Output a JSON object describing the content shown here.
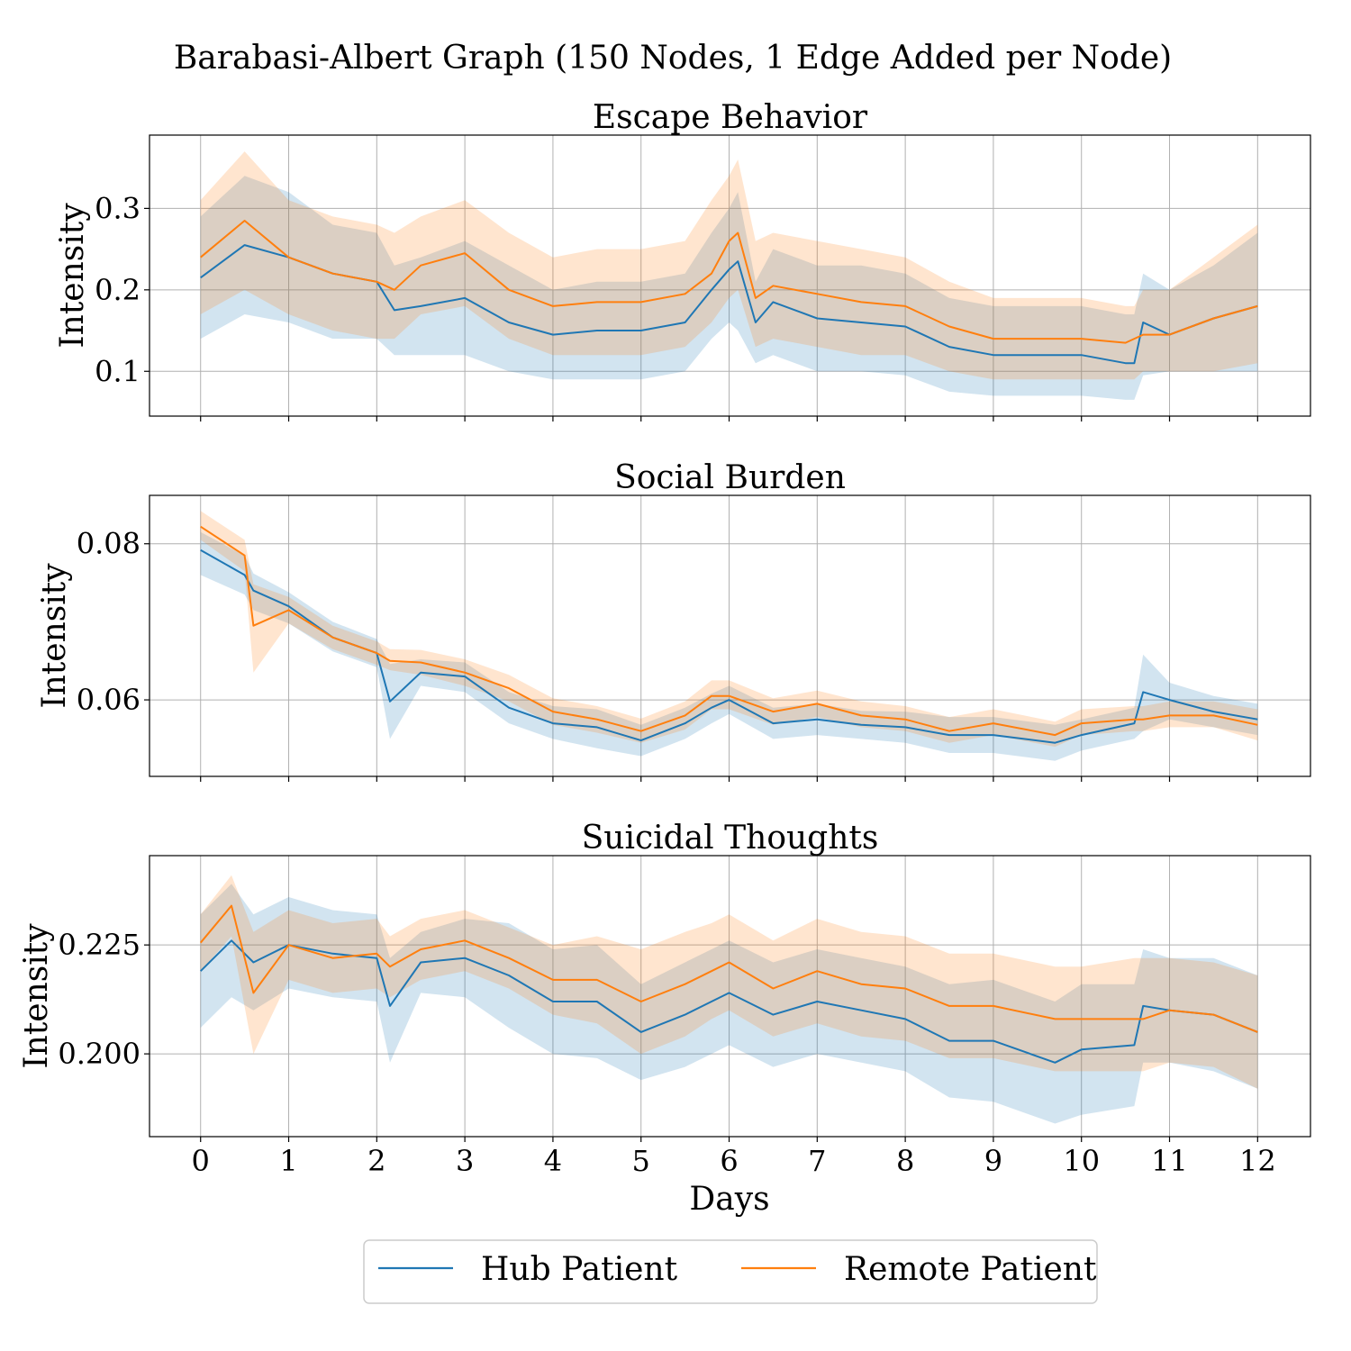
{
  "figure": {
    "title": "Barabasi-Albert Graph (150 Nodes, 1 Edge Added per Node)",
    "xlabel": "Days"
  },
  "legend": {
    "placement": "bottom-center",
    "items": [
      {
        "label": "Hub Patient",
        "color": "#1f77b4"
      },
      {
        "label": "Remote Patient",
        "color": "#ff7f0e"
      }
    ]
  },
  "colors": {
    "hub": "#1f77b4",
    "remote": "#ff7f0e",
    "hub_band": "#1f77b4",
    "remote_band": "#ff7f0e",
    "grid": "#b0b0b0"
  },
  "chart_data": [
    {
      "type": "line",
      "title": "Escape Behavior",
      "xlabel": "",
      "ylabel": "Intensity",
      "xlim": [
        -0.58,
        12.6
      ],
      "ylim": [
        0.045,
        0.39
      ],
      "xticks": [
        0,
        1,
        2,
        3,
        4,
        5,
        6,
        7,
        8,
        9,
        10,
        11,
        12
      ],
      "yticks": [
        0.1,
        0.2,
        0.3
      ],
      "yticklabels": [
        "0.1",
        "0.2",
        "0.3"
      ],
      "grid": true,
      "x": [
        0,
        0.5,
        1,
        1.5,
        2,
        2.2,
        2.5,
        3,
        3.5,
        4,
        4.5,
        5,
        5.5,
        5.8,
        6,
        6.1,
        6.3,
        6.5,
        7,
        7.5,
        8,
        8.5,
        9,
        9.5,
        10,
        10.5,
        10.6,
        10.7,
        11,
        11.5,
        12
      ],
      "series": [
        {
          "name": "Hub Patient",
          "values": [
            0.215,
            0.255,
            0.24,
            0.22,
            0.21,
            0.175,
            0.18,
            0.19,
            0.16,
            0.145,
            0.15,
            0.15,
            0.16,
            0.2,
            0.225,
            0.235,
            0.16,
            0.185,
            0.165,
            0.16,
            0.155,
            0.13,
            0.12,
            0.12,
            0.12,
            0.11,
            0.11,
            0.16,
            0.145,
            0.165,
            0.18
          ],
          "lower": [
            0.14,
            0.17,
            0.16,
            0.14,
            0.14,
            0.12,
            0.12,
            0.12,
            0.1,
            0.09,
            0.09,
            0.09,
            0.1,
            0.14,
            0.16,
            0.15,
            0.11,
            0.12,
            0.1,
            0.1,
            0.095,
            0.075,
            0.07,
            0.07,
            0.07,
            0.065,
            0.065,
            0.095,
            0.1,
            0.1,
            0.1
          ],
          "upper": [
            0.29,
            0.34,
            0.32,
            0.28,
            0.27,
            0.23,
            0.24,
            0.26,
            0.23,
            0.2,
            0.21,
            0.21,
            0.22,
            0.27,
            0.3,
            0.32,
            0.21,
            0.25,
            0.23,
            0.23,
            0.22,
            0.19,
            0.18,
            0.18,
            0.18,
            0.17,
            0.17,
            0.22,
            0.2,
            0.23,
            0.27
          ]
        },
        {
          "name": "Remote Patient",
          "values": [
            0.24,
            0.285,
            0.24,
            0.22,
            0.21,
            0.2,
            0.23,
            0.245,
            0.2,
            0.18,
            0.185,
            0.185,
            0.195,
            0.22,
            0.26,
            0.27,
            0.19,
            0.205,
            0.195,
            0.185,
            0.18,
            0.155,
            0.14,
            0.14,
            0.14,
            0.135,
            0.14,
            0.145,
            0.145,
            0.165,
            0.18
          ],
          "lower": [
            0.17,
            0.2,
            0.17,
            0.15,
            0.14,
            0.14,
            0.17,
            0.18,
            0.14,
            0.12,
            0.12,
            0.12,
            0.13,
            0.16,
            0.19,
            0.2,
            0.13,
            0.14,
            0.13,
            0.12,
            0.12,
            0.1,
            0.09,
            0.09,
            0.09,
            0.09,
            0.09,
            0.1,
            0.1,
            0.1,
            0.11
          ],
          "upper": [
            0.31,
            0.37,
            0.31,
            0.29,
            0.28,
            0.27,
            0.29,
            0.31,
            0.27,
            0.24,
            0.25,
            0.25,
            0.26,
            0.31,
            0.34,
            0.36,
            0.26,
            0.27,
            0.26,
            0.25,
            0.24,
            0.21,
            0.19,
            0.19,
            0.19,
            0.18,
            0.18,
            0.2,
            0.2,
            0.24,
            0.28
          ]
        }
      ]
    },
    {
      "type": "line",
      "title": "Social Burden",
      "xlabel": "",
      "ylabel": "Intensity",
      "xlim": [
        -0.58,
        12.6
      ],
      "ylim": [
        0.0502,
        0.0862
      ],
      "xticks": [
        0,
        1,
        2,
        3,
        4,
        5,
        6,
        7,
        8,
        9,
        10,
        11,
        12
      ],
      "yticks": [
        0.06,
        0.08
      ],
      "yticklabels": [
        "0.06",
        "0.08"
      ],
      "grid": true,
      "x": [
        0,
        0.5,
        0.6,
        1,
        1.5,
        2,
        2.15,
        2.5,
        3,
        3.5,
        4,
        4.5,
        5,
        5.5,
        5.8,
        6,
        6.5,
        7,
        7.5,
        8,
        8.5,
        9,
        9.7,
        10,
        10.6,
        10.7,
        11,
        11.5,
        12
      ],
      "series": [
        {
          "name": "Hub Patient",
          "values": [
            0.0792,
            0.076,
            0.074,
            0.072,
            0.068,
            0.066,
            0.0598,
            0.0635,
            0.063,
            0.059,
            0.057,
            0.0565,
            0.0548,
            0.057,
            0.059,
            0.06,
            0.057,
            0.0575,
            0.0568,
            0.0565,
            0.0555,
            0.0555,
            0.0545,
            0.0555,
            0.057,
            0.061,
            0.06,
            0.0585,
            0.0575
          ],
          "lower": [
            0.076,
            0.0735,
            0.0715,
            0.0698,
            0.0662,
            0.0642,
            0.055,
            0.0618,
            0.061,
            0.057,
            0.055,
            0.0538,
            0.0528,
            0.055,
            0.057,
            0.0582,
            0.055,
            0.0555,
            0.055,
            0.0545,
            0.0532,
            0.0532,
            0.0522,
            0.0535,
            0.055,
            0.056,
            0.0575,
            0.0565,
            0.0555
          ],
          "upper": [
            0.0815,
            0.0785,
            0.0762,
            0.0738,
            0.07,
            0.0678,
            0.0646,
            0.0652,
            0.0648,
            0.061,
            0.0592,
            0.0588,
            0.0568,
            0.059,
            0.0608,
            0.0618,
            0.059,
            0.0595,
            0.0586,
            0.0585,
            0.0578,
            0.0578,
            0.0568,
            0.0575,
            0.059,
            0.0658,
            0.0622,
            0.0605,
            0.0595
          ]
        },
        {
          "name": "Remote Patient",
          "values": [
            0.0822,
            0.0785,
            0.0695,
            0.0715,
            0.068,
            0.066,
            0.065,
            0.0648,
            0.0635,
            0.0615,
            0.0585,
            0.0575,
            0.056,
            0.058,
            0.0605,
            0.0605,
            0.0585,
            0.0595,
            0.058,
            0.0575,
            0.056,
            0.057,
            0.0555,
            0.057,
            0.0575,
            0.0575,
            0.058,
            0.058,
            0.0568
          ],
          "lower": [
            0.0805,
            0.0765,
            0.0635,
            0.0698,
            0.0665,
            0.0645,
            0.0638,
            0.0632,
            0.0618,
            0.0598,
            0.0568,
            0.0558,
            0.0545,
            0.0562,
            0.0588,
            0.0588,
            0.0568,
            0.0578,
            0.0565,
            0.056,
            0.0545,
            0.0555,
            0.054,
            0.0555,
            0.056,
            0.056,
            0.0565,
            0.0565,
            0.0548
          ],
          "upper": [
            0.0842,
            0.0805,
            0.0748,
            0.0732,
            0.0695,
            0.0675,
            0.0665,
            0.0664,
            0.0652,
            0.0632,
            0.0602,
            0.0592,
            0.0576,
            0.0598,
            0.0625,
            0.0625,
            0.0602,
            0.0612,
            0.0598,
            0.0592,
            0.0578,
            0.0588,
            0.0572,
            0.0588,
            0.0592,
            0.0592,
            0.0598,
            0.0598,
            0.0588
          ]
        }
      ]
    },
    {
      "type": "line",
      "title": "Suicidal Thoughts",
      "xlabel": "Days",
      "ylabel": "Intensity",
      "xlim": [
        -0.58,
        12.6
      ],
      "ylim": [
        0.181,
        0.2455
      ],
      "xticks": [
        0,
        1,
        2,
        3,
        4,
        5,
        6,
        7,
        8,
        9,
        10,
        11,
        12
      ],
      "yticks": [
        0.2,
        0.225
      ],
      "yticklabels": [
        "0.200",
        "0.225"
      ],
      "grid": true,
      "x": [
        0,
        0.35,
        0.6,
        1,
        1.5,
        2,
        2.15,
        2.5,
        3,
        3.5,
        4,
        4.5,
        5,
        5.5,
        5.8,
        6,
        6.5,
        7,
        7.5,
        8,
        8.5,
        9,
        9.7,
        10,
        10.6,
        10.7,
        11,
        11.5,
        12
      ],
      "series": [
        {
          "name": "Hub Patient",
          "values": [
            0.219,
            0.226,
            0.221,
            0.225,
            0.223,
            0.222,
            0.211,
            0.221,
            0.222,
            0.218,
            0.212,
            0.212,
            0.205,
            0.209,
            0.212,
            0.214,
            0.209,
            0.212,
            0.21,
            0.208,
            0.203,
            0.203,
            0.198,
            0.201,
            0.202,
            0.211,
            0.21,
            0.209,
            0.205
          ],
          "lower": [
            0.206,
            0.213,
            0.21,
            0.215,
            0.213,
            0.212,
            0.198,
            0.214,
            0.213,
            0.206,
            0.2,
            0.199,
            0.194,
            0.197,
            0.2,
            0.202,
            0.197,
            0.2,
            0.198,
            0.196,
            0.19,
            0.189,
            0.184,
            0.186,
            0.188,
            0.198,
            0.198,
            0.196,
            0.192
          ],
          "upper": [
            0.232,
            0.239,
            0.232,
            0.236,
            0.233,
            0.232,
            0.222,
            0.228,
            0.231,
            0.23,
            0.224,
            0.225,
            0.216,
            0.221,
            0.224,
            0.226,
            0.221,
            0.224,
            0.222,
            0.22,
            0.216,
            0.217,
            0.212,
            0.216,
            0.216,
            0.224,
            0.222,
            0.222,
            0.218
          ]
        },
        {
          "name": "Remote Patient",
          "values": [
            0.2255,
            0.234,
            0.214,
            0.225,
            0.222,
            0.223,
            0.22,
            0.224,
            0.226,
            0.222,
            0.217,
            0.217,
            0.212,
            0.216,
            0.219,
            0.221,
            0.215,
            0.219,
            0.216,
            0.215,
            0.211,
            0.211,
            0.208,
            0.208,
            0.208,
            0.208,
            0.21,
            0.209,
            0.205
          ],
          "lower": [
            0.219,
            0.227,
            0.2,
            0.217,
            0.214,
            0.215,
            0.213,
            0.217,
            0.219,
            0.215,
            0.209,
            0.207,
            0.2,
            0.204,
            0.208,
            0.21,
            0.204,
            0.207,
            0.204,
            0.203,
            0.199,
            0.199,
            0.196,
            0.196,
            0.196,
            0.196,
            0.198,
            0.197,
            0.192
          ],
          "upper": [
            0.232,
            0.241,
            0.228,
            0.233,
            0.23,
            0.231,
            0.227,
            0.231,
            0.233,
            0.229,
            0.225,
            0.227,
            0.224,
            0.228,
            0.23,
            0.232,
            0.226,
            0.231,
            0.228,
            0.227,
            0.223,
            0.223,
            0.22,
            0.22,
            0.222,
            0.222,
            0.222,
            0.221,
            0.218
          ]
        }
      ]
    }
  ]
}
